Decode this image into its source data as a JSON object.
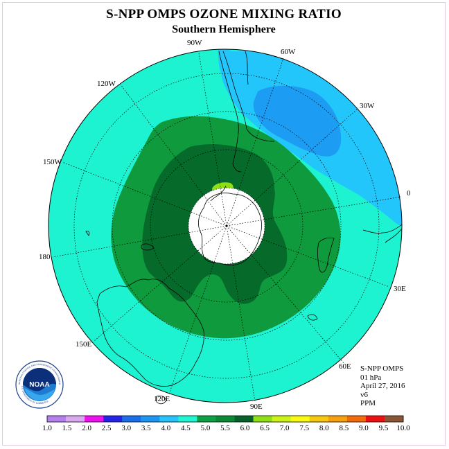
{
  "header": {
    "title": "S-NPP OMPS OZONE MIXING RATIO",
    "subtitle": "Southern Hemisphere"
  },
  "longitude_labels": [
    {
      "id": "lon-90w",
      "text": "90W"
    },
    {
      "id": "lon-60w",
      "text": "60W"
    },
    {
      "id": "lon-30w",
      "text": "30W"
    },
    {
      "id": "lon-0",
      "text": "0"
    },
    {
      "id": "lon-30e",
      "text": "30E"
    },
    {
      "id": "lon-60e",
      "text": "60E"
    },
    {
      "id": "lon-90e",
      "text": "90E"
    },
    {
      "id": "lon-120e",
      "text": "120E"
    },
    {
      "id": "lon-150e",
      "text": "150E"
    },
    {
      "id": "lon-180",
      "text": "180"
    },
    {
      "id": "lon-150w",
      "text": "150W"
    },
    {
      "id": "lon-120w",
      "text": "120W"
    }
  ],
  "info": {
    "instrument": "S-NPP OMPS",
    "level": "01 hPa",
    "date": "April 27, 2016",
    "version": "v6",
    "units": "PPM"
  },
  "logo": {
    "text": "NOAA",
    "ring_text": "NATIONAL OCEANIC AND ATMOSPHERIC ADMINISTRATION",
    "ring_text_bottom": "U.S. DEPARTMENT OF COMMERCE"
  },
  "colorbar": {
    "labels": [
      "1.0",
      "1.5",
      "2.0",
      "2.5",
      "3.0",
      "3.5",
      "4.0",
      "4.5",
      "5.0",
      "5.5",
      "6.0",
      "6.5",
      "7.0",
      "7.5",
      "8.0",
      "8.5",
      "9.0",
      "9.5",
      "10.0"
    ],
    "colors": [
      "#b580ee",
      "#d9a8f0",
      "#ee11ee",
      "#2424e8",
      "#1a6ee8",
      "#1d95f2",
      "#27c4fb",
      "#1ff7d3",
      "#0ba043",
      "#0a8a35",
      "#07622a",
      "#8fe014",
      "#ccf316",
      "#f8fa10",
      "#f8c80e",
      "#f5a00c",
      "#f26b0a",
      "#ec1010",
      "#8b5535"
    ]
  },
  "map_regions": [
    {
      "name": "ozone-level-4.0-4.5",
      "color": "#1df2d1"
    },
    {
      "name": "ozone-level-3.5-4.0",
      "color": "#23c6fb"
    },
    {
      "name": "ozone-level-3.0-3.5",
      "color": "#1c9cf3"
    },
    {
      "name": "ozone-level-5.0-5.5",
      "color": "#0e9a3d"
    },
    {
      "name": "ozone-level-5.5-6.0",
      "color": "#066a2b"
    },
    {
      "name": "ozone-level-6.0-6.5",
      "color": "#8fe014"
    },
    {
      "name": "no-data-polar-night",
      "color": "#ffffff"
    }
  ]
}
